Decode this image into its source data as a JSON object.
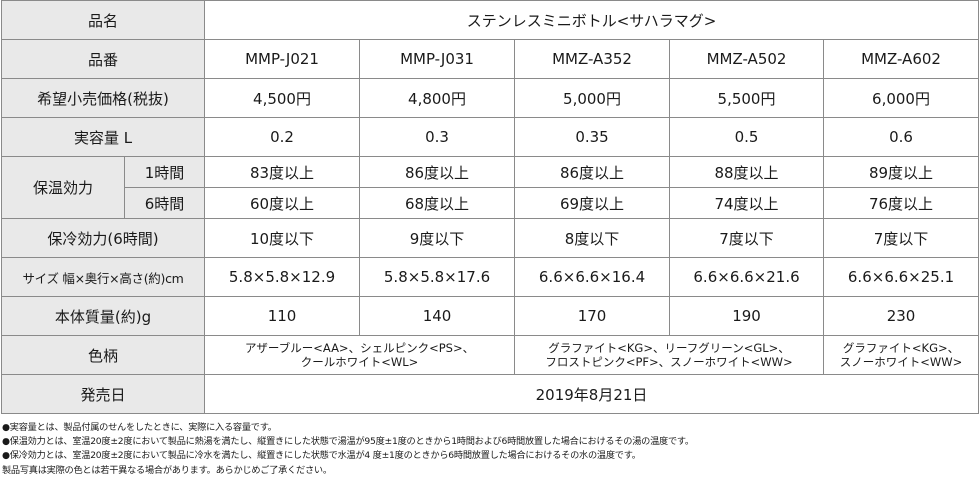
{
  "table": {
    "name_header": "品名",
    "name_value": "ステンレスミニボトル<サハラマグ>",
    "model_header": "品番",
    "models": [
      "MMP-J021",
      "MMP-J031",
      "MMZ-A352",
      "MMZ-A502",
      "MMZ-A602"
    ],
    "price_header": "希望小売価格(税抜)",
    "prices": [
      "4,500円",
      "4,800円",
      "5,000円",
      "5,500円",
      "6,000円"
    ],
    "capacity_header": "実容量 L",
    "capacities": [
      "0.2",
      "0.3",
      "0.35",
      "0.5",
      "0.6"
    ],
    "heat_header": "保温効力",
    "heat_1h_label": "1時間",
    "heat_1h": [
      "83度以上",
      "86度以上",
      "86度以上",
      "88度以上",
      "89度以上"
    ],
    "heat_6h_label": "6時間",
    "heat_6h": [
      "60度以上",
      "68度以上",
      "69度以上",
      "74度以上",
      "76度以上"
    ],
    "cold_header": "保冷効力(6時間)",
    "cold": [
      "10度以下",
      "9度以下",
      "8度以下",
      "7度以下",
      "7度以下"
    ],
    "size_header": "サイズ 幅×奥行×高さ(約)cm",
    "sizes": [
      "5.8×5.8×12.9",
      "5.8×5.8×17.6",
      "6.6×6.6×16.4",
      "6.6×6.6×21.6",
      "6.6×6.6×25.1"
    ],
    "weight_header": "本体質量(約)g",
    "weights": [
      "110",
      "140",
      "170",
      "190",
      "230"
    ],
    "color_header": "色柄",
    "colors_group1": [
      "アザーブルー<AA>、シェルピンク<PS>、",
      "クールホワイト<WL>"
    ],
    "colors_group2": [
      "グラファイト<KG>、リーフグリーン<GL>、",
      "フロストピンク<PF>、スノーホワイト<WW>"
    ],
    "colors_group3": [
      "グラファイト<KG>、",
      "スノーホワイト<WW>"
    ],
    "release_header": "発売日",
    "release_value": "2019年8月21日"
  },
  "notes": [
    "●実容量とは、製品付属のせんをしたときに、実際に入る容量です。",
    "●保温効力とは、室温20度±2度において製品に熱湯を満たし、縦置きにした状態で湯温が95度±1度のときから1時間および6時間放置した場合におけるその湯の温度です。",
    "●保冷効力とは、室温20度±2度において製品に冷水を満たし、縦置きにした状態で水温が4 度±1度のときから6時間放置した場合におけるその水の温度です。",
    "製品写真は実際の色とは若干異なる場合があります。あらかじめご了承ください。"
  ]
}
